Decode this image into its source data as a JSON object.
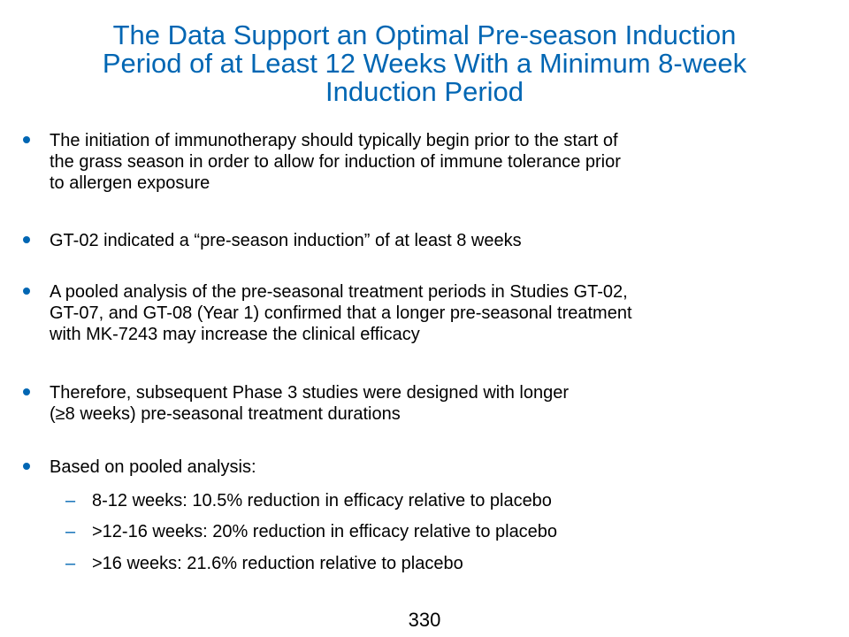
{
  "slide": {
    "title_lines": [
      "The Data Support an Optimal Pre-season Induction",
      "Period of at Least 12 Weeks With a Minimum 8-week",
      "Induction Period"
    ],
    "bullets": [
      {
        "lines": [
          "The initiation of immunotherapy should typically begin prior to the start of",
          "the grass season in order to allow for induction of immune tolerance prior",
          "to allergen exposure"
        ]
      },
      {
        "lines": [
          "GT-02 indicated a “pre-season induction” of at least 8 weeks"
        ]
      },
      {
        "lines": [
          "A pooled analysis of the pre-seasonal treatment periods in Studies GT-02,",
          "GT-07, and GT-08 (Year 1) confirmed that a longer pre-seasonal treatment",
          "with MK-7243 may increase the clinical efficacy"
        ]
      },
      {
        "lines": [
          "Therefore, subsequent Phase 3 studies were designed with longer",
          "(≥8 weeks) pre-seasonal treatment durations"
        ]
      },
      {
        "lines": [
          "Based on pooled analysis:"
        ],
        "sub_items": [
          "8-12 weeks: 10.5% reduction in efficacy relative to placebo",
          ">12-16 weeks: 20% reduction in efficacy relative to placebo",
          ">16 weeks: 21.6% reduction relative to placebo"
        ]
      }
    ],
    "sub_bullet_marker": "–",
    "page_number": "330",
    "colors": {
      "title": "#0066b3",
      "bullet": "#0066b3",
      "text": "#000000",
      "background": "#ffffff"
    }
  }
}
